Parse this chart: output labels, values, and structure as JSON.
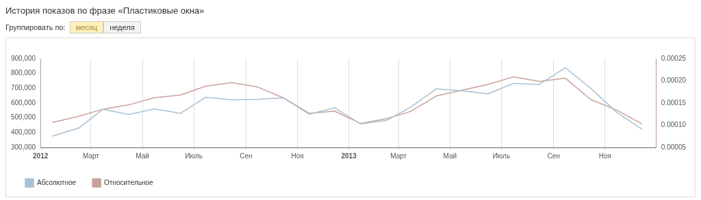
{
  "chart_data": {
    "type": "line",
    "title": "История показов по фразе «Пластиковые окна»",
    "annotations": [
      "Группировать по:",
      "месяц",
      "неделя"
    ],
    "x": [
      "2012-01-15",
      "2012-02-15",
      "2012-03-15",
      "2012-04-15",
      "2012-05-15",
      "2012-06-15",
      "2012-07-15",
      "2012-08-15",
      "2012-09-15",
      "2012-10-15",
      "2012-11-15",
      "2012-12-15",
      "2013-01-15",
      "2013-02-15",
      "2013-03-15",
      "2013-04-15",
      "2013-05-15",
      "2013-06-15",
      "2013-07-15",
      "2013-08-15",
      "2013-09-15",
      "2013-10-15",
      "2013-11-15",
      "2013-12-15"
    ],
    "series": [
      {
        "name": "Абсолютное",
        "color": "#a9c0d3",
        "values": [
          376000,
          430000,
          558000,
          523000,
          561000,
          530000,
          639000,
          622000,
          625000,
          636000,
          525000,
          568000,
          459000,
          484000,
          572000,
          696000,
          683000,
          662000,
          733000,
          726000,
          839000,
          700000,
          537000,
          423000
        ]
      },
      {
        "name": "Относительное",
        "color": "#c9a09a",
        "axis": "y2",
        "values": [
          0.000106,
          0.00012,
          0.000136,
          0.000146,
          0.000162,
          0.000168,
          0.000188,
          0.000196,
          0.000186,
          0.000162,
          0.000127,
          0.000132,
          0.000104,
          0.000115,
          0.000131,
          0.000166,
          0.000179,
          0.000192,
          0.000209,
          0.000199,
          0.000206,
          0.000158,
          0.000134,
          0.000103
        ]
      }
    ],
    "xlim": [
      "2012-01-01",
      "2014-01-01"
    ],
    "xticks": [
      {
        "value": "2012-01-01",
        "label": "2012"
      },
      {
        "value": "2012-03-01",
        "label": "Март"
      },
      {
        "value": "2012-05-01",
        "label": "Май"
      },
      {
        "value": "2012-07-01",
        "label": "Июль"
      },
      {
        "value": "2012-09-01",
        "label": "Сен"
      },
      {
        "value": "2012-11-01",
        "label": "Ноя"
      },
      {
        "value": "2013-01-01",
        "label": "2013"
      },
      {
        "value": "2013-03-01",
        "label": "Март"
      },
      {
        "value": "2013-05-01",
        "label": "Май"
      },
      {
        "value": "2013-07-01",
        "label": "Июль"
      },
      {
        "value": "2013-09-01",
        "label": "Сен"
      },
      {
        "value": "2013-11-01",
        "label": "Ноя"
      }
    ],
    "ylim": [
      300000,
      900000
    ],
    "yticks": [
      {
        "value": 300000,
        "label": "300,000"
      },
      {
        "value": 400000,
        "label": "400,000"
      },
      {
        "value": 500000,
        "label": "500,000"
      },
      {
        "value": 600000,
        "label": "600,000"
      },
      {
        "value": 700000,
        "label": "700,000"
      },
      {
        "value": 800000,
        "label": "800,000"
      },
      {
        "value": 900000,
        "label": "900,000"
      }
    ],
    "y2lim": [
      5e-05,
      0.00025
    ],
    "y2ticks": [
      {
        "value": 5e-05,
        "label": "0.00005"
      },
      {
        "value": 0.0001,
        "label": "0.00010"
      },
      {
        "value": 0.00015,
        "label": "0.00015"
      },
      {
        "value": 0.0002,
        "label": "0.00020"
      },
      {
        "value": 0.00025,
        "label": "0.00025"
      }
    ],
    "grid": "x",
    "legend": "bottom left",
    "marker": "none",
    "line_style": "solid"
  }
}
